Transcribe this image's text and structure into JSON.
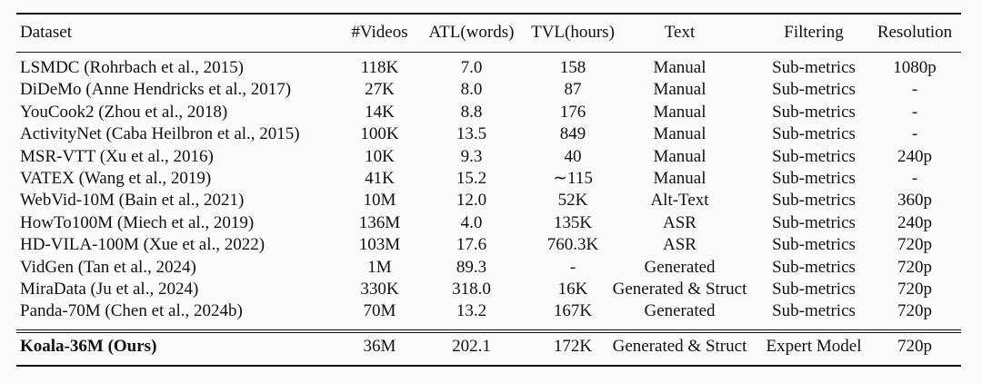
{
  "table": {
    "headers": {
      "dataset": "Dataset",
      "videos": "#Videos",
      "atl": "ATL(words)",
      "tvl": "TVL(hours)",
      "text": "Text",
      "filtering": "Filtering",
      "resolution": "Resolution"
    },
    "rows": [
      {
        "dataset": "LSMDC (Rohrbach et al., 2015)",
        "videos": "118K",
        "atl": "7.0",
        "tvl": "158",
        "text": "Manual",
        "filtering": "Sub-metrics",
        "resolution": "1080p"
      },
      {
        "dataset": "DiDeMo (Anne Hendricks et al., 2017)",
        "videos": "27K",
        "atl": "8.0",
        "tvl": "87",
        "text": "Manual",
        "filtering": "Sub-metrics",
        "resolution": "-"
      },
      {
        "dataset": "YouCook2 (Zhou et al., 2018)",
        "videos": "14K",
        "atl": "8.8",
        "tvl": "176",
        "text": "Manual",
        "filtering": "Sub-metrics",
        "resolution": "-"
      },
      {
        "dataset": "ActivityNet (Caba Heilbron et al., 2015)",
        "videos": "100K",
        "atl": "13.5",
        "tvl": "849",
        "text": "Manual",
        "filtering": "Sub-metrics",
        "resolution": "-"
      },
      {
        "dataset": "MSR-VTT (Xu et al., 2016)",
        "videos": "10K",
        "atl": "9.3",
        "tvl": "40",
        "text": "Manual",
        "filtering": "Sub-metrics",
        "resolution": "240p"
      },
      {
        "dataset": "VATEX (Wang et al., 2019)",
        "videos": "41K",
        "atl": "15.2",
        "tvl": "∼115",
        "text": "Manual",
        "filtering": "Sub-metrics",
        "resolution": "-"
      },
      {
        "dataset": "WebVid-10M (Bain et al., 2021)",
        "videos": "10M",
        "atl": "12.0",
        "tvl": "52K",
        "text": "Alt-Text",
        "filtering": "Sub-metrics",
        "resolution": "360p"
      },
      {
        "dataset": "HowTo100M (Miech et al., 2019)",
        "videos": "136M",
        "atl": "4.0",
        "tvl": "135K",
        "text": "ASR",
        "filtering": "Sub-metrics",
        "resolution": "240p"
      },
      {
        "dataset": "HD-VILA-100M (Xue et al., 2022)",
        "videos": "103M",
        "atl": "17.6",
        "tvl": "760.3K",
        "text": "ASR",
        "filtering": "Sub-metrics",
        "resolution": "720p"
      },
      {
        "dataset": "VidGen (Tan et al., 2024)",
        "videos": "1M",
        "atl": "89.3",
        "tvl": "-",
        "text": "Generated",
        "filtering": "Sub-metrics",
        "resolution": "720p"
      },
      {
        "dataset": "MiraData (Ju et al., 2024)",
        "videos": "330K",
        "atl": "318.0",
        "tvl": "16K",
        "text": "Generated & Struct",
        "filtering": "Sub-metrics",
        "resolution": "720p"
      },
      {
        "dataset": "Panda-70M (Chen et al., 2024b)",
        "videos": "70M",
        "atl": "13.2",
        "tvl": "167K",
        "text": "Generated",
        "filtering": "Sub-metrics",
        "resolution": "720p"
      }
    ],
    "ours": {
      "dataset": "Koala-36M (Ours)",
      "videos": "36M",
      "atl": "202.1",
      "tvl": "172K",
      "text": "Generated & Struct",
      "filtering": "Expert Model",
      "resolution": "720p"
    }
  }
}
